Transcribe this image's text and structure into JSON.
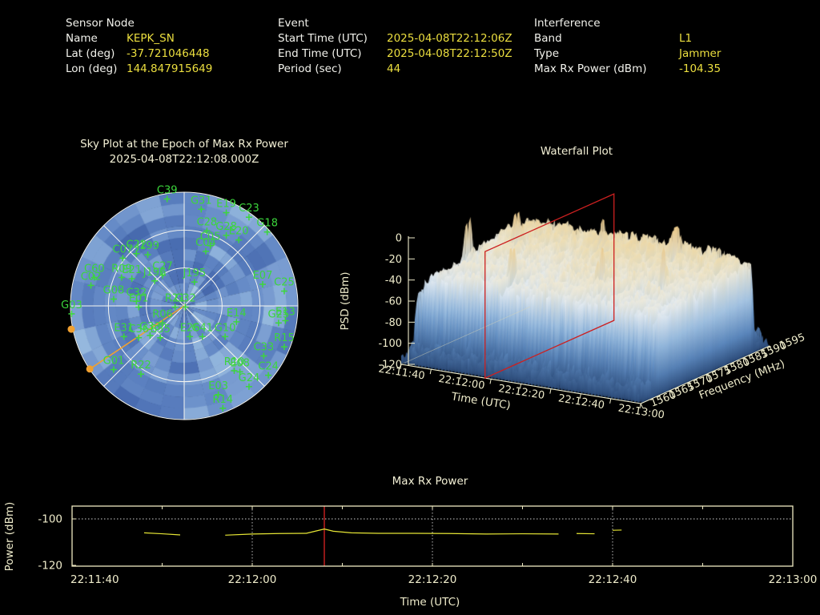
{
  "app": {
    "background": "#000000"
  },
  "colors": {
    "text_white": "#f2f2ec",
    "value_yellow": "#ecdf3f",
    "title_cream": "#f3f0d5",
    "tick_cream": "#efeccb",
    "frame_cream": "#efeac2",
    "sat_green": "#3cd63c",
    "orange": "#f0a030",
    "red": "#cc2020",
    "trace_yellow": "#e6e635",
    "grid_dotted": "#cfcfcf"
  },
  "header": {
    "sections": [
      {
        "title": "Sensor Node",
        "rows": [
          {
            "label": "Name",
            "value": "KEPK_SN"
          },
          {
            "label": "Lat (deg)",
            "value": "-37.721046448"
          },
          {
            "label": "Lon (deg)",
            "value": "144.847915649"
          }
        ]
      },
      {
        "title": "Event",
        "rows": [
          {
            "label": "Start Time (UTC)",
            "value": "2025-04-08T22:12:06Z"
          },
          {
            "label": "End Time (UTC)",
            "value": "2025-04-08T22:12:50Z"
          },
          {
            "label": "Period (sec)",
            "value": "44"
          }
        ]
      },
      {
        "title": "Interference",
        "rows": [
          {
            "label": "Band",
            "value": "L1"
          },
          {
            "label": "Type",
            "value": "Jammer"
          },
          {
            "label": "Max Rx Power (dBm)",
            "value": "-104.35"
          }
        ]
      }
    ]
  },
  "chart_data": [
    {
      "id": "skyplot",
      "type": "polar_skyplot_heatmap",
      "title_line1": "Sky Plot at the Epoch of Max Rx Power",
      "title_line2": "2025-04-08T22:12:08.000Z",
      "rings_elevation_deg": [
        0,
        30,
        60
      ],
      "radial_spokes": 8,
      "heatmap": {
        "az_cells": 28,
        "el_cells": 10,
        "seed": 7,
        "palette": [
          "#3d5c9a",
          "#486bb0",
          "#5276b8",
          "#5d82c1",
          "#6a8fc9",
          "#7a9dd1",
          "#8cb0da",
          "#a0c2e2",
          "#b6d3ea"
        ]
      },
      "interference_bearing": {
        "line_to": [
          -0.83,
          0.555
        ],
        "dots": [
          [
            -0.83,
            0.555
          ],
          [
            -0.993,
            0.205
          ]
        ]
      },
      "satellites": [
        [
          "C39",
          -0.15,
          -0.94
        ],
        [
          "G31",
          0.15,
          -0.85
        ],
        [
          "E19",
          0.37,
          -0.82
        ],
        [
          "C23",
          0.57,
          -0.78
        ],
        [
          "G18",
          0.73,
          -0.65
        ],
        [
          "C28",
          0.2,
          -0.66
        ],
        [
          "G28",
          0.37,
          -0.62
        ],
        [
          "E20",
          0.48,
          -0.58
        ],
        [
          "C05",
          0.23,
          -0.53
        ],
        [
          "C04",
          0.19,
          -0.48
        ],
        [
          "C22",
          -0.42,
          -0.46
        ],
        [
          "J199",
          -0.32,
          -0.45
        ],
        [
          "C07",
          -0.54,
          -0.42
        ],
        [
          "C27",
          -0.19,
          -0.27
        ],
        [
          "J196",
          -0.26,
          -0.22
        ],
        [
          "J195",
          0.09,
          -0.21
        ],
        [
          "E07",
          0.69,
          -0.19
        ],
        [
          "C25",
          0.88,
          -0.13
        ],
        [
          "C02",
          -0.82,
          -0.18
        ],
        [
          "C60",
          -0.79,
          -0.25
        ],
        [
          "R09",
          -0.55,
          -0.25
        ],
        [
          "E21",
          -0.46,
          -0.24
        ],
        [
          "G08",
          -0.62,
          -0.06
        ],
        [
          "C32",
          -0.42,
          -0.04
        ],
        [
          "E01",
          -0.4,
          0.01
        ],
        [
          "G03",
          -0.99,
          0.07
        ],
        [
          "R21",
          -0.08,
          0.01
        ],
        [
          "G32",
          0.01,
          0.01
        ],
        [
          "E14",
          0.46,
          0.14
        ],
        [
          "G25",
          0.83,
          0.15
        ],
        [
          "E13",
          0.89,
          0.13
        ],
        [
          "R15",
          0.88,
          0.36
        ],
        [
          "C33",
          0.7,
          0.44
        ],
        [
          "C24",
          0.74,
          0.61
        ],
        [
          "G24",
          0.57,
          0.71
        ],
        [
          "E08",
          0.49,
          0.58
        ],
        [
          "R10",
          0.44,
          0.57
        ],
        [
          "E03",
          0.3,
          0.78
        ],
        [
          "R14",
          0.34,
          0.9
        ],
        [
          "G01",
          -0.62,
          0.56
        ],
        [
          "R22",
          -0.38,
          0.6
        ],
        [
          "R06",
          -0.19,
          0.15
        ],
        [
          "E31",
          -0.53,
          0.27
        ],
        [
          "C36",
          -0.4,
          0.28
        ],
        [
          "G33",
          -0.3,
          0.26
        ],
        [
          "B35",
          -0.21,
          0.28
        ],
        [
          "E26",
          0.05,
          0.27
        ],
        [
          "G41",
          0.16,
          0.27
        ],
        [
          "G10",
          0.36,
          0.27
        ]
      ]
    },
    {
      "id": "waterfall",
      "type": "3d_surface",
      "title": "Waterfall Plot",
      "zlabel": "PSD (dBm)",
      "zticks": [
        0,
        -20,
        -40,
        -60,
        -80,
        -100,
        -120
      ],
      "xlabel": "Time (UTC)",
      "xticks": [
        "22:11:40",
        "22:12:00",
        "22:12:20",
        "22:12:40",
        "22:13:00"
      ],
      "ylabel": "Frequency (MHz)",
      "yticks": [
        1560,
        1565,
        1570,
        1575,
        1580,
        1585,
        1590,
        1595
      ],
      "time_span_sec": 80,
      "epoch_slice": {
        "time_utc": "22:12:08",
        "t_sec": 28
      },
      "band": {
        "start_mhz": 1563,
        "stop_mhz": 1591.6,
        "floor_dbm": -104,
        "seed": 12,
        "spikes": [
          [
            4,
            1575,
            -4
          ],
          [
            13,
            1581,
            -14
          ],
          [
            26,
            1569,
            -16
          ],
          [
            38,
            1584,
            -13
          ],
          [
            52,
            1572,
            -15
          ],
          [
            60,
            1586,
            -10
          ],
          [
            68,
            1576,
            -15
          ]
        ]
      },
      "colormap": [
        [
          -120,
          "#2b4a78"
        ],
        [
          -96,
          "#5f8cc2"
        ],
        [
          -74,
          "#94b8dc"
        ],
        [
          -56,
          "#c3d8ea"
        ],
        [
          -44,
          "#e7edf2"
        ],
        [
          -33,
          "#f1ead5"
        ],
        [
          -22,
          "#f0dcab"
        ],
        [
          -5,
          "#ecca8b"
        ],
        [
          0,
          "#eac987"
        ]
      ]
    },
    {
      "id": "maxrx",
      "type": "line",
      "title": "Max Rx Power",
      "xlabel": "Time (UTC)",
      "ylabel": "Power (dBm)",
      "xtick_labels": [
        "22:11:40",
        "22:12:00",
        "22:12:20",
        "22:12:40",
        "22:13:00"
      ],
      "span_sec": 80,
      "yticks": [
        -100,
        -120
      ],
      "ylim": [
        -120,
        -93.9
      ],
      "grid_x_sec": [
        20,
        40,
        60
      ],
      "grid_y": [
        -100
      ],
      "event_marker_sec": 28,
      "segments": [
        [
          [
            8,
            -106.0
          ],
          [
            10,
            -106.4
          ],
          [
            12,
            -106.9
          ]
        ],
        [
          [
            17,
            -107.0
          ],
          [
            20,
            -106.5
          ],
          [
            23,
            -106.3
          ],
          [
            26,
            -106.2
          ],
          [
            28,
            -104.35
          ],
          [
            29,
            -105.3
          ],
          [
            31,
            -106.0
          ],
          [
            34,
            -106.2
          ],
          [
            38,
            -106.2
          ],
          [
            42,
            -106.3
          ],
          [
            46,
            -106.5
          ],
          [
            50,
            -106.4
          ],
          [
            54,
            -106.5
          ]
        ],
        [
          [
            56,
            -106.3
          ],
          [
            58,
            -106.4
          ]
        ],
        [
          [
            60,
            -104.9
          ],
          [
            61,
            -104.8
          ]
        ]
      ]
    }
  ]
}
